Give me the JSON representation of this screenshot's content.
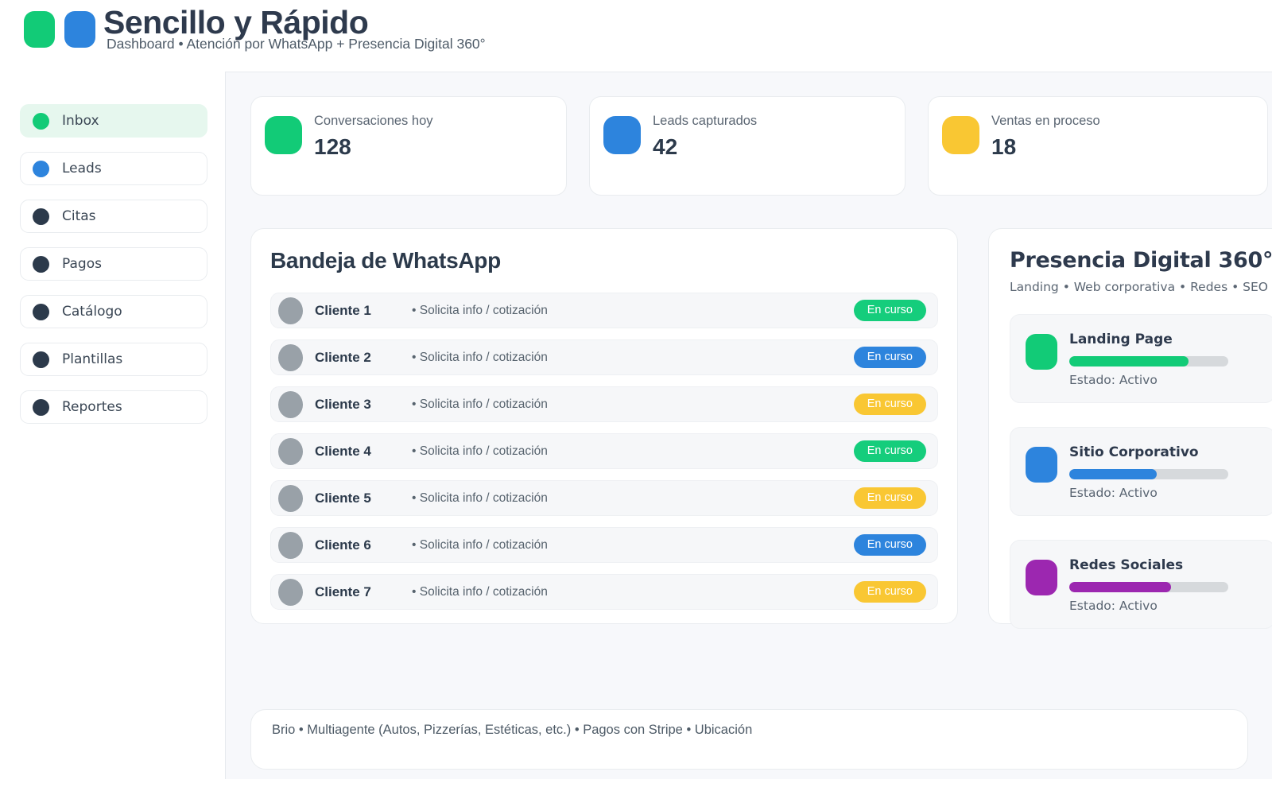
{
  "header": {
    "title": "Sencillo y Rápido",
    "subtitle": "Dashboard • Atención por WhatsApp + Presencia Digital 360°"
  },
  "colors": {
    "green": "#12cb77",
    "blue": "#2d84dd",
    "yellow": "#f9c733",
    "purple": "#9c27b0",
    "dark": "#2c3a4b"
  },
  "sidebar": {
    "items": [
      {
        "label": "Inbox",
        "dot_color": "#12cb77",
        "active": true
      },
      {
        "label": "Leads",
        "dot_color": "#2d84dd",
        "active": false
      },
      {
        "label": "Citas",
        "dot_color": "#2c3a4b",
        "active": false
      },
      {
        "label": "Pagos",
        "dot_color": "#2c3a4b",
        "active": false
      },
      {
        "label": "Catálogo",
        "dot_color": "#2c3a4b",
        "active": false
      },
      {
        "label": "Plantillas",
        "dot_color": "#2c3a4b",
        "active": false
      },
      {
        "label": "Reportes",
        "dot_color": "#2c3a4b",
        "active": false
      }
    ]
  },
  "stats": [
    {
      "label": "Conversaciones hoy",
      "value": "128",
      "icon_color": "#12cb77"
    },
    {
      "label": "Leads capturados",
      "value": "42",
      "icon_color": "#2d84dd"
    },
    {
      "label": "Ventas en proceso",
      "value": "18",
      "icon_color": "#f9c733"
    }
  ],
  "whatsapp": {
    "title": "Bandeja de WhatsApp",
    "rows": [
      {
        "name": "Cliente 1",
        "note": "• Solicita info / cotización",
        "badge": "En curso",
        "badge_color": "#15cd7c"
      },
      {
        "name": "Cliente 2",
        "note": "• Solicita info / cotización",
        "badge": "En curso",
        "badge_color": "#2d84dd"
      },
      {
        "name": "Cliente 3",
        "note": "• Solicita info / cotización",
        "badge": "En curso",
        "badge_color": "#f9c733"
      },
      {
        "name": "Cliente 4",
        "note": "• Solicita info / cotización",
        "badge": "En curso",
        "badge_color": "#15cd7c"
      },
      {
        "name": "Cliente 5",
        "note": "• Solicita info / cotización",
        "badge": "En curso",
        "badge_color": "#f9c733"
      },
      {
        "name": "Cliente 6",
        "note": "• Solicita info / cotización",
        "badge": "En curso",
        "badge_color": "#2d84dd"
      },
      {
        "name": "Cliente 7",
        "note": "• Solicita info / cotización",
        "badge": "En curso",
        "badge_color": "#f9c733"
      }
    ]
  },
  "presence": {
    "title": "Presencia Digital 360°",
    "subtitle": "Landing • Web corporativa • Redes • SEO",
    "cards": [
      {
        "title": "Landing Page",
        "status": "Estado: Activo",
        "color": "#12cb77",
        "progress": 75
      },
      {
        "title": "Sitio Corporativo",
        "status": "Estado: Activo",
        "color": "#2d84dd",
        "progress": 55
      },
      {
        "title": "Redes Sociales",
        "status": "Estado: Activo",
        "color": "#9c27b0",
        "progress": 64
      }
    ]
  },
  "footer": {
    "text": "Brio • Multiagente (Autos, Pizzerías, Estéticas, etc.) • Pagos con Stripe • Ubicación"
  }
}
